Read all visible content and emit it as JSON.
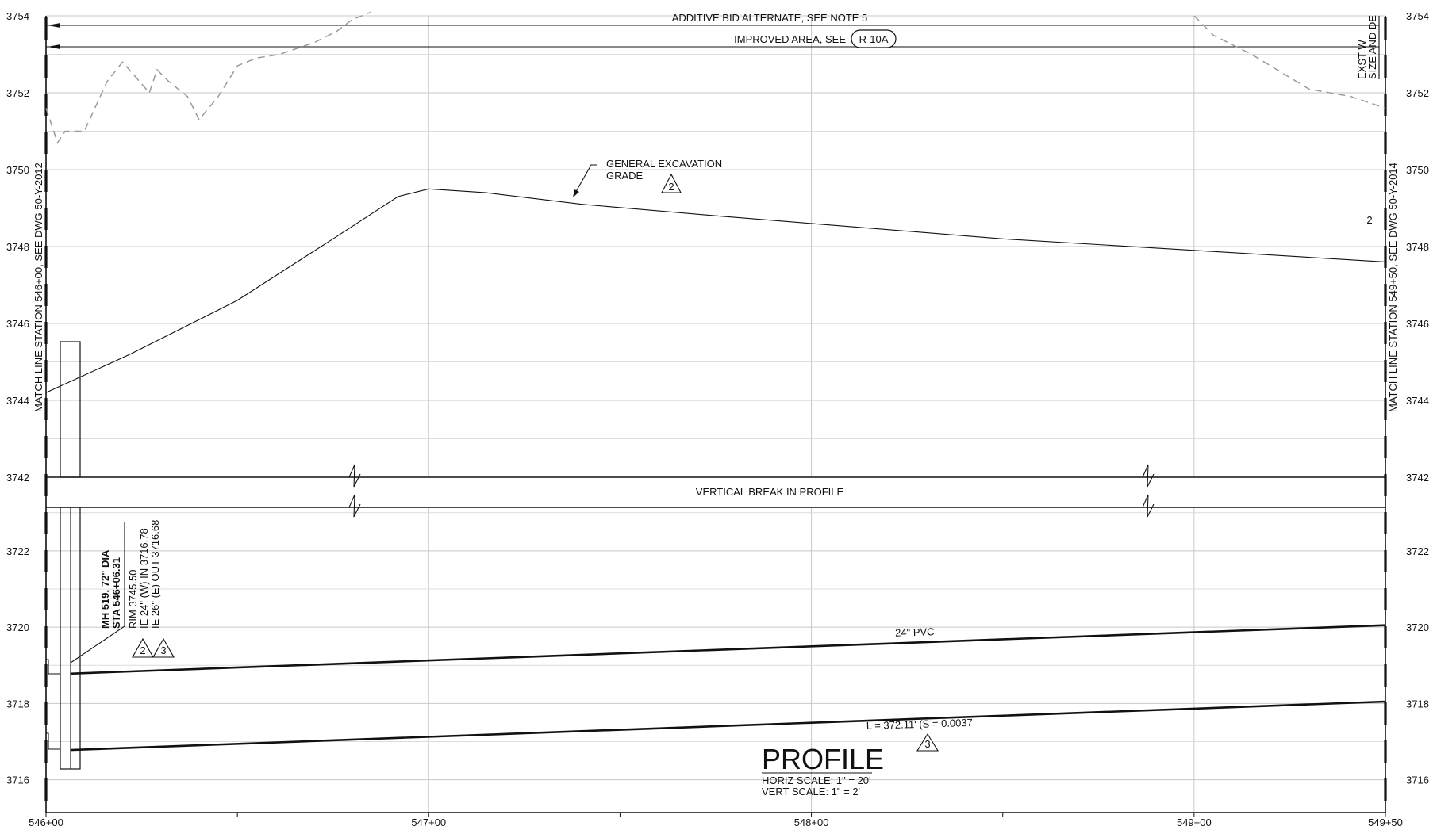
{
  "drawing": {
    "title": "PROFILE",
    "horiz_scale": "HORIZ SCALE: 1\" = 20'",
    "vert_scale": "VERT SCALE: 1\" = 2'"
  },
  "labels": {
    "additive_bid": "ADDITIVE BID ALTERNATE, SEE NOTE 5",
    "improved_area": "IMPROVED AREA, SEE",
    "improved_area_ref": "R-10A",
    "exst_1": "EXST W",
    "exst_2": "SIZE AND DE",
    "match_left": "MATCH LINE STATION 546+00, SEE DWG 50-Y-2012",
    "match_right": "MATCH LINE STATION 549+50, SEE DWG 50-Y-2014",
    "excavation_1": "GENERAL EXCAVATION",
    "excavation_2": "GRADE",
    "vertical_break": "VERTICAL BREAK IN PROFILE",
    "pipe": "24\" PVC",
    "pipe_length": "L = 372.11'  (S = 0.0037",
    "stray_2": "2"
  },
  "manhole": {
    "name": "MH 519, 72\" DIA",
    "station": "STA 546+06.31",
    "rim": "RIM 3745.50",
    "ie_in": "IE 24\" (W) IN 3716.78",
    "ie_out": "IE 26\" (E) OUT 3716.68"
  },
  "callouts": {
    "excavation_tri": "2",
    "mh_tri_a": "2",
    "mh_tri_b": "3",
    "pipe_tri": "3"
  },
  "chart_data": {
    "type": "line",
    "x_ticks": [
      "546+00",
      "547+00",
      "548+00",
      "549+00",
      "549+50"
    ],
    "xlim": [
      54600,
      54950
    ],
    "upper_panel": {
      "ylim": [
        3742,
        3754
      ],
      "y_ticks": [
        "3742",
        "3744",
        "3746",
        "3748",
        "3750",
        "3752",
        "3754"
      ],
      "series": [
        {
          "name": "GENERAL EXCAVATION GRADE",
          "x": [
            54600,
            54622,
            54650,
            54675,
            54692,
            54700,
            54715,
            54740,
            54775,
            54800,
            54850,
            54900,
            54950
          ],
          "y": [
            3744.2,
            3745.2,
            3746.6,
            3748.2,
            3749.3,
            3749.5,
            3749.4,
            3749.1,
            3748.8,
            3748.6,
            3748.2,
            3747.9,
            3747.6
          ]
        },
        {
          "x": [
            54600,
            54603,
            54605,
            54610,
            54616,
            54620,
            54627,
            54629,
            54632,
            54637,
            54640,
            54645,
            54650,
            54655,
            54661,
            54670,
            54676,
            54680,
            54685
          ],
          "y": [
            3751.6,
            3750.7,
            3751.0,
            3751.0,
            3752.3,
            3752.8,
            3752.0,
            3752.6,
            3752.3,
            3751.9,
            3751.3,
            3751.9,
            3752.7,
            3752.9,
            3753.0,
            3753.3,
            3753.6,
            3753.9,
            3754.1
          ]
        },
        {
          "x": [
            54900,
            54905,
            54915,
            54930,
            54941,
            54950
          ],
          "y": [
            3754.0,
            3753.5,
            3753.0,
            3752.1,
            3751.9,
            3751.6
          ]
        }
      ]
    },
    "lower_panel": {
      "ylim": [
        3715,
        3723
      ],
      "y_ticks": [
        "3716",
        "3718",
        "3720",
        "3722"
      ],
      "series": [
        {
          "name": "24\" PVC",
          "x": [
            54606.31,
            54950
          ],
          "y": [
            3718.78,
            3720.05
          ]
        },
        {
          "x": [
            54606.31,
            54950
          ],
          "y": [
            3716.78,
            3718.05
          ]
        }
      ]
    }
  }
}
